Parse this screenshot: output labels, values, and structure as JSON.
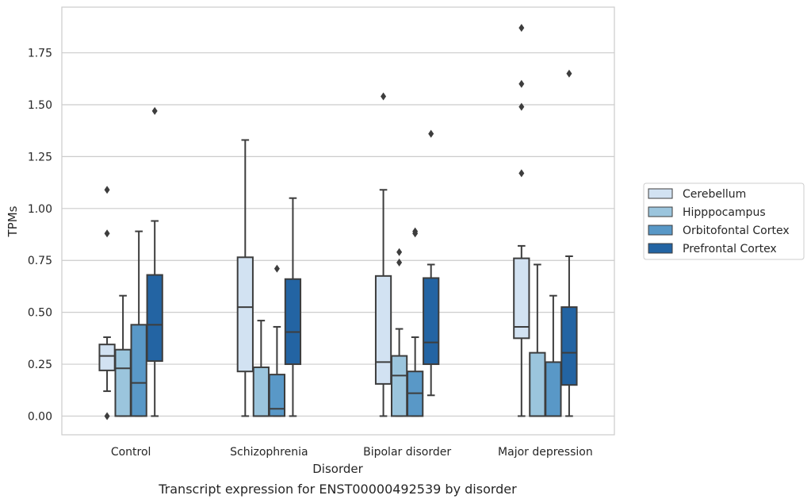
{
  "chart_data": {
    "type": "box",
    "xlabel": "Disorder",
    "ylabel": "TPMs",
    "caption": "Transcript expression for ENST00000492539 by disorder",
    "categories": [
      "Control",
      "Schizophrenia",
      "Bipolar disorder",
      "Major depression"
    ],
    "ylim": [
      -0.09,
      1.97
    ],
    "yticks": [
      {
        "value": 0.0,
        "label": "0.00"
      },
      {
        "value": 0.25,
        "label": "0.25"
      },
      {
        "value": 0.5,
        "label": "0.50"
      },
      {
        "value": 0.75,
        "label": "0.75"
      },
      {
        "value": 1.0,
        "label": "1.00"
      },
      {
        "value": 1.25,
        "label": "1.25"
      },
      {
        "value": 1.5,
        "label": "1.50"
      },
      {
        "value": 1.75,
        "label": "1.75"
      }
    ],
    "grid": "horizontal",
    "legend_position": "right",
    "series": [
      {
        "name": "Cerebellum",
        "color": "#d2e2f2",
        "boxes": [
          {
            "whislo": 0.12,
            "q1": 0.22,
            "med": 0.29,
            "q3": 0.345,
            "whishi": 0.38,
            "fliers": [
              0.0,
              0.88,
              1.09
            ]
          },
          {
            "whislo": 0.0,
            "q1": 0.215,
            "med": 0.525,
            "q3": 0.765,
            "whishi": 1.33,
            "fliers": []
          },
          {
            "whislo": 0.0,
            "q1": 0.155,
            "med": 0.26,
            "q3": 0.675,
            "whishi": 1.09,
            "fliers": [
              1.54
            ]
          },
          {
            "whislo": 0.0,
            "q1": 0.375,
            "med": 0.43,
            "q3": 0.76,
            "whishi": 0.82,
            "fliers": [
              1.17,
              1.49,
              1.6,
              1.87
            ]
          }
        ]
      },
      {
        "name": "Hipppocampus",
        "color": "#9bc5dd",
        "boxes": [
          {
            "whislo": 0.0,
            "q1": 0.0,
            "med": 0.23,
            "q3": 0.32,
            "whishi": 0.58,
            "fliers": []
          },
          {
            "whislo": 0.0,
            "q1": 0.0,
            "med": 0.0,
            "q3": 0.235,
            "whishi": 0.46,
            "fliers": []
          },
          {
            "whislo": 0.0,
            "q1": 0.0,
            "med": 0.195,
            "q3": 0.29,
            "whishi": 0.42,
            "fliers": [
              0.74,
              0.79
            ]
          },
          {
            "whislo": 0.0,
            "q1": 0.0,
            "med": 0.0,
            "q3": 0.305,
            "whishi": 0.73,
            "fliers": []
          }
        ]
      },
      {
        "name": "Orbitofontal Cortex",
        "color": "#5998c7",
        "boxes": [
          {
            "whislo": 0.0,
            "q1": 0.0,
            "med": 0.16,
            "q3": 0.44,
            "whishi": 0.89,
            "fliers": []
          },
          {
            "whislo": 0.0,
            "q1": 0.0,
            "med": 0.035,
            "q3": 0.2,
            "whishi": 0.43,
            "fliers": [
              0.71
            ]
          },
          {
            "whislo": 0.0,
            "q1": 0.0,
            "med": 0.11,
            "q3": 0.215,
            "whishi": 0.38,
            "fliers": [
              0.88,
              0.89
            ]
          },
          {
            "whislo": 0.0,
            "q1": 0.0,
            "med": 0.0,
            "q3": 0.26,
            "whishi": 0.58,
            "fliers": []
          }
        ]
      },
      {
        "name": "Prefrontal Cortex",
        "color": "#2364a3",
        "boxes": [
          {
            "whislo": 0.0,
            "q1": 0.265,
            "med": 0.44,
            "q3": 0.68,
            "whishi": 0.94,
            "fliers": [
              1.47
            ]
          },
          {
            "whislo": 0.0,
            "q1": 0.25,
            "med": 0.405,
            "q3": 0.66,
            "whishi": 1.05,
            "fliers": []
          },
          {
            "whislo": 0.1,
            "q1": 0.25,
            "med": 0.355,
            "q3": 0.665,
            "whishi": 0.73,
            "fliers": [
              1.36
            ]
          },
          {
            "whislo": 0.0,
            "q1": 0.15,
            "med": 0.305,
            "q3": 0.525,
            "whishi": 0.77,
            "fliers": [
              1.65
            ]
          }
        ]
      }
    ]
  }
}
